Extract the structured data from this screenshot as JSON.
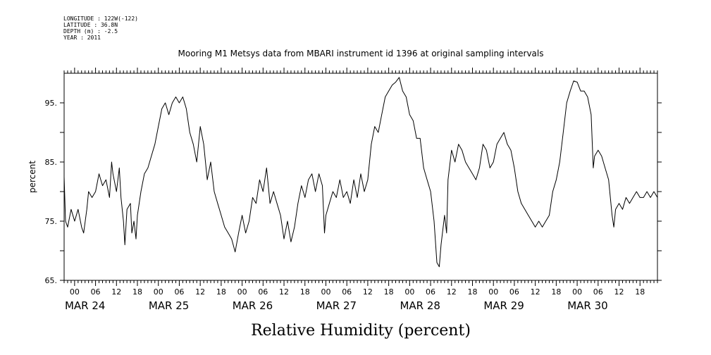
{
  "meta": {
    "lines": [
      "LONGITUDE : 122W(-122)",
      "LATITUDE : 36.8N",
      "DEPTH (m) : -2.5",
      "YEAR : 2011"
    ]
  },
  "chart_data": {
    "type": "line",
    "title": "Mooring M1 Metsys data from MBARI instrument id 1396 at original sampling intervals",
    "xlabel": "Relative Humidity (percent)",
    "ylabel": "percent",
    "x_units": "hours since 00:00 MAR 24, 2011",
    "xlim": [
      -3,
      167
    ],
    "ylim": [
      65,
      100
    ],
    "y_ticks": [
      65,
      70,
      75,
      80,
      85,
      90,
      95
    ],
    "y_tick_labels": [
      "65.",
      "75.",
      "85.",
      "95."
    ],
    "x_hour_labels": [
      "00",
      "06",
      "12",
      "18",
      "00",
      "06",
      "12",
      "18",
      "00",
      "06",
      "12",
      "18",
      "00",
      "06",
      "12",
      "18",
      "00",
      "06",
      "12",
      "18",
      "00",
      "06",
      "12",
      "18",
      "00",
      "06",
      "12",
      "18"
    ],
    "day_labels": [
      "MAR 24",
      "MAR 25",
      "MAR 26",
      "MAR 27",
      "MAR 28",
      "MAR 29",
      "MAR 30"
    ],
    "series": [
      {
        "values": [
          [
            -3,
            82.5
          ],
          [
            -2.6,
            75
          ],
          [
            -2,
            74
          ],
          [
            -1,
            77
          ],
          [
            0,
            75
          ],
          [
            1,
            77
          ],
          [
            2,
            74
          ],
          [
            2.6,
            73
          ],
          [
            3.5,
            77
          ],
          [
            4,
            80
          ],
          [
            5,
            79
          ],
          [
            6,
            80
          ],
          [
            7,
            83
          ],
          [
            8,
            81
          ],
          [
            9,
            82
          ],
          [
            10,
            79
          ],
          [
            10.6,
            85
          ],
          [
            11,
            83
          ],
          [
            12,
            80
          ],
          [
            12.8,
            84
          ],
          [
            13.3,
            79
          ],
          [
            14,
            75
          ],
          [
            14.4,
            71
          ],
          [
            15,
            77
          ],
          [
            16,
            78
          ],
          [
            16.4,
            73
          ],
          [
            17,
            75
          ],
          [
            17.6,
            72
          ],
          [
            18,
            76
          ],
          [
            19,
            80
          ],
          [
            20,
            83
          ],
          [
            21,
            84
          ],
          [
            22,
            86
          ],
          [
            23,
            88
          ],
          [
            24,
            91
          ],
          [
            25,
            94
          ],
          [
            26,
            95
          ],
          [
            27,
            93
          ],
          [
            28,
            95
          ],
          [
            29,
            96
          ],
          [
            30,
            95
          ],
          [
            31,
            96
          ],
          [
            32,
            94
          ],
          [
            33,
            90
          ],
          [
            34,
            88
          ],
          [
            35,
            85
          ],
          [
            36,
            91
          ],
          [
            37,
            88
          ],
          [
            38,
            82
          ],
          [
            39,
            85
          ],
          [
            40,
            80
          ],
          [
            41,
            78
          ],
          [
            42,
            76
          ],
          [
            43,
            74
          ],
          [
            44,
            73
          ],
          [
            45,
            72
          ],
          [
            46,
            69.8
          ],
          [
            47,
            73
          ],
          [
            48,
            76
          ],
          [
            49,
            73
          ],
          [
            50,
            75
          ],
          [
            51,
            79
          ],
          [
            52,
            78
          ],
          [
            53,
            82
          ],
          [
            54,
            80
          ],
          [
            55,
            84
          ],
          [
            56,
            78
          ],
          [
            57,
            80
          ],
          [
            58,
            78
          ],
          [
            59,
            76
          ],
          [
            60,
            72
          ],
          [
            61,
            75
          ],
          [
            62,
            71.5
          ],
          [
            63,
            74
          ],
          [
            64,
            78
          ],
          [
            65,
            81
          ],
          [
            66,
            79
          ],
          [
            67,
            82
          ],
          [
            68,
            83
          ],
          [
            69,
            80
          ],
          [
            70,
            83
          ],
          [
            71,
            81
          ],
          [
            71.6,
            73
          ],
          [
            72,
            76
          ],
          [
            73,
            78
          ],
          [
            74,
            80
          ],
          [
            75,
            79
          ],
          [
            76,
            82
          ],
          [
            77,
            79
          ],
          [
            78,
            80
          ],
          [
            79,
            78
          ],
          [
            80,
            82
          ],
          [
            81,
            79
          ],
          [
            82,
            83
          ],
          [
            83,
            80
          ],
          [
            84,
            82
          ],
          [
            85,
            88
          ],
          [
            86,
            91
          ],
          [
            87,
            90
          ],
          [
            88,
            93
          ],
          [
            89,
            96
          ],
          [
            90,
            97
          ],
          [
            91,
            98
          ],
          [
            92,
            98.5
          ],
          [
            93,
            99.3
          ],
          [
            94,
            97
          ],
          [
            95,
            96
          ],
          [
            96,
            93
          ],
          [
            97,
            92
          ],
          [
            98,
            89
          ],
          [
            99,
            89
          ],
          [
            100,
            84
          ],
          [
            101,
            82
          ],
          [
            102,
            80
          ],
          [
            103,
            75
          ],
          [
            103.8,
            68
          ],
          [
            104.5,
            67.3
          ],
          [
            105,
            71
          ],
          [
            106,
            76
          ],
          [
            106.6,
            73
          ],
          [
            107,
            82
          ],
          [
            108,
            87
          ],
          [
            109,
            85
          ],
          [
            110,
            88
          ],
          [
            111,
            87
          ],
          [
            112,
            85
          ],
          [
            113,
            84
          ],
          [
            114,
            83
          ],
          [
            115,
            82
          ],
          [
            116,
            84
          ],
          [
            117,
            88
          ],
          [
            118,
            87
          ],
          [
            119,
            84
          ],
          [
            120,
            85
          ],
          [
            121,
            88
          ],
          [
            122,
            89
          ],
          [
            123,
            90
          ],
          [
            124,
            88
          ],
          [
            125,
            87
          ],
          [
            126,
            84
          ],
          [
            127,
            80
          ],
          [
            128,
            78
          ],
          [
            129,
            77
          ],
          [
            130,
            76
          ],
          [
            131,
            75
          ],
          [
            132,
            74
          ],
          [
            133,
            75
          ],
          [
            134,
            74
          ],
          [
            135,
            75
          ],
          [
            136,
            76
          ],
          [
            137,
            80
          ],
          [
            138,
            82
          ],
          [
            139,
            85
          ],
          [
            140,
            90
          ],
          [
            141,
            95
          ],
          [
            142,
            97
          ],
          [
            143,
            98.7
          ],
          [
            144,
            98.5
          ],
          [
            145,
            97
          ],
          [
            146,
            97
          ],
          [
            147,
            96
          ],
          [
            148,
            93
          ],
          [
            148.6,
            84
          ],
          [
            149,
            86
          ],
          [
            150,
            87
          ],
          [
            151,
            86
          ],
          [
            152,
            84
          ],
          [
            153,
            82
          ],
          [
            154,
            76
          ],
          [
            154.5,
            74
          ],
          [
            155,
            77
          ],
          [
            156,
            78
          ],
          [
            157,
            77
          ],
          [
            158,
            79
          ],
          [
            159,
            78
          ],
          [
            160,
            79
          ],
          [
            161,
            80
          ],
          [
            162,
            79
          ],
          [
            163,
            79
          ],
          [
            164,
            80
          ],
          [
            165,
            79
          ],
          [
            166,
            80
          ],
          [
            167,
            79
          ]
        ]
      }
    ]
  }
}
